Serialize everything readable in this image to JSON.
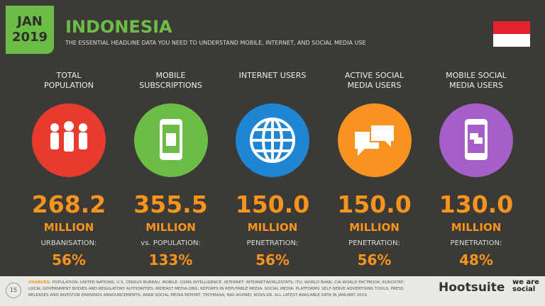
{
  "header": {
    "month": "JAN",
    "year": "2019",
    "title": "INDONESIA",
    "subtitle": "THE ESSENTIAL HEADLINE DATA YOU NEED TO UNDERSTAND MOBILE, INTERNET, AND SOCIAL MEDIA USE"
  },
  "stats": [
    {
      "label": "TOTAL POPULATION",
      "value": "268.2",
      "unit": "MILLION",
      "sub_label": "URBANISATION:",
      "sub_value": "56%",
      "color": "#e63b2e"
    },
    {
      "label": "MOBILE SUBSCRIPTIONS",
      "value": "355.5",
      "unit": "MILLION",
      "sub_label": "vs. POPULATION:",
      "sub_value": "133%",
      "color": "#6cbd45"
    },
    {
      "label": "INTERNET USERS",
      "value": "150.0",
      "unit": "MILLION",
      "sub_label": "PENETRATION:",
      "sub_value": "56%",
      "color": "#1f86d6"
    },
    {
      "label": "ACTIVE SOCIAL MEDIA USERS",
      "value": "150.0",
      "unit": "MILLION",
      "sub_label": "PENETRATION:",
      "sub_value": "56%",
      "color": "#f7931e"
    },
    {
      "label": "MOBILE SOCIAL MEDIA USERS",
      "value": "130.0",
      "unit": "MILLION",
      "sub_label": "PENETRATION:",
      "sub_value": "48%",
      "color": "#a65ec9"
    }
  ],
  "footer": {
    "page": "15",
    "sources_label": "SOURCES:",
    "sources": "POPULATION: UNITED NATIONS; U.S. CENSUS BUREAU. MOBILE: GSMA INTELLIGENCE. INTERNET: INTERNETWORLDSTATS; ITU; WORLD BANK; CIA WORLD FACTBOOK; EUROSTAT; LOCAL GOVERNMENT BODIES AND REGULATORY AUTHORITIES; MIDEAST MEDIA.ORG; REPORTS IN REPUTABLE MEDIA. SOCIAL MEDIA: PLATFORMS' SELF-SERVE ADVERTISING TOOLS; PRESS RELEASES AND INVESTOR EARNINGS ANNOUNCEMENTS; ARAB SOCIAL MEDIA REPORT; TECHRASA; NIKI AGHAEI; KOSIS.KR. ALL LATEST AVAILABLE DATA IN JANUARY 2019.",
    "brand": "Hootsuite",
    "partner": "we are social"
  }
}
